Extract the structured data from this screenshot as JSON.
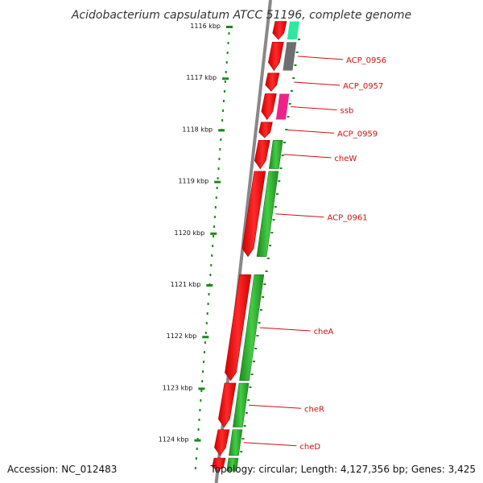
{
  "title": "Acidobacterium capsulatum ATCC 51196, complete genome",
  "accession": "Accession: NC_012483",
  "topology": "Topology: circular; Length: 4,127,356 bp; Genes: 3,425",
  "ruler": {
    "ticks": [
      {
        "label": "1116 kbp",
        "kbp": 1116
      },
      {
        "label": "1117 kbp",
        "kbp": 1117
      },
      {
        "label": "1118 kbp",
        "kbp": 1118
      },
      {
        "label": "1119 kbp",
        "kbp": 1119
      },
      {
        "label": "1120 kbp",
        "kbp": 1120
      },
      {
        "label": "1121 kbp",
        "kbp": 1121
      },
      {
        "label": "1122 kbp",
        "kbp": 1122
      },
      {
        "label": "1123 kbp",
        "kbp": 1123
      },
      {
        "label": "1124 kbp",
        "kbp": 1124
      }
    ]
  },
  "genes": [
    {
      "label": "",
      "start_kbp": 1115.9,
      "end_kbp": 1116.25,
      "color": "#2ee8a0"
    },
    {
      "label": "ACP_0956",
      "start_kbp": 1116.3,
      "end_kbp": 1116.85,
      "color": "#6e6e6e"
    },
    {
      "label": "ACP_0957",
      "start_kbp": 1116.9,
      "end_kbp": 1117.25,
      "color": "#ffffff"
    },
    {
      "label": "ssb",
      "start_kbp": 1117.3,
      "end_kbp": 1117.8,
      "color": "#ee2288"
    },
    {
      "label": "ACP_0959",
      "start_kbp": 1117.85,
      "end_kbp": 1118.15,
      "color": "#ffffff"
    },
    {
      "label": "cheW",
      "start_kbp": 1118.2,
      "end_kbp": 1118.75,
      "color": "#2eaa2e"
    },
    {
      "label": "ACP_0961",
      "start_kbp": 1118.8,
      "end_kbp": 1120.45,
      "color": "#2eaa2e"
    },
    {
      "label": "cheA",
      "start_kbp": 1120.8,
      "end_kbp": 1122.85,
      "color": "#2eaa2e"
    },
    {
      "label": "cheR",
      "start_kbp": 1122.9,
      "end_kbp": 1123.75,
      "color": "#2eaa2e"
    },
    {
      "label": "cheD",
      "start_kbp": 1123.8,
      "end_kbp": 1124.3,
      "color": "#2eaa2e"
    },
    {
      "label": "",
      "start_kbp": 1124.35,
      "end_kbp": 1124.6,
      "color": "#2eaa2e"
    }
  ],
  "colors": {
    "cds_track": "#ff1a1a",
    "ruler_tick": "#1a8a1a",
    "label_text": "#cc1111",
    "backbone": "#888888"
  }
}
